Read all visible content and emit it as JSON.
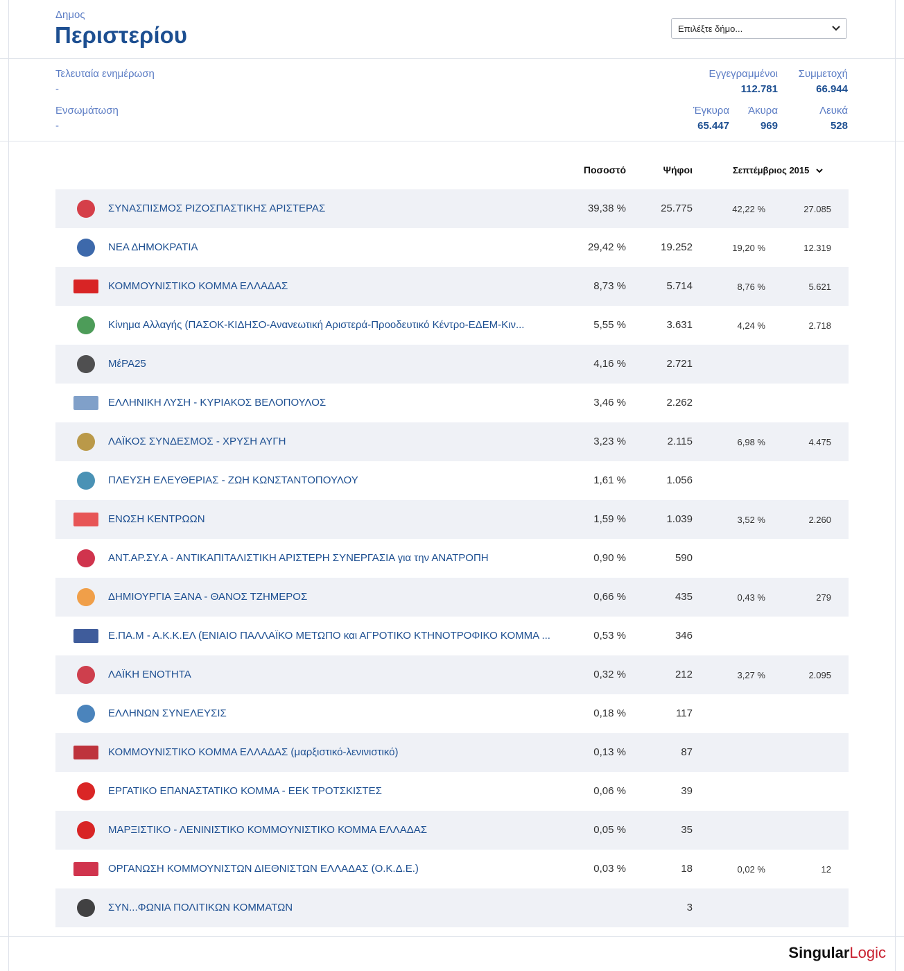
{
  "header": {
    "kicker": "Δημος",
    "title": "Περιστερίου",
    "select": "Επιλέξτε δήμο..."
  },
  "info": {
    "last_update": {
      "label": "Τελευταία ενημέρωση",
      "value": "-"
    },
    "incorporation": {
      "label": "Ενσωμάτωση",
      "value": "-"
    }
  },
  "stats": {
    "registered": {
      "label": "Εγγεγραμμένοι",
      "value": "112.781"
    },
    "turnout": {
      "label": "Συμμετοχή",
      "value": "66.944"
    },
    "valid": {
      "label": "Έγκυρα",
      "value": "65.447"
    },
    "invalid": {
      "label": "Άκυρα",
      "value": "969"
    },
    "blank": {
      "label": "Λευκά",
      "value": "528"
    }
  },
  "table": {
    "headers": {
      "percent": "Ποσοστό",
      "votes": "Ψήφοι",
      "previous": "Σεπτέμβριος 2015"
    },
    "rows": [
      {
        "name": "ΣΥΝΑΣΠΙΣΜΟΣ ΡΙΖΟΣΠΑΣΤΙΚΗΣ ΑΡΙΣΤΕΡΑΣ",
        "percent": "39,38 %",
        "votes": "25.775",
        "prev_percent": "42,22 %",
        "prev_votes": "27.085"
      },
      {
        "name": "ΝΕΑ ΔΗΜΟΚΡΑΤΙΑ",
        "percent": "29,42 %",
        "votes": "19.252",
        "prev_percent": "19,20 %",
        "prev_votes": "12.319"
      },
      {
        "name": "ΚΟΜΜΟΥΝΙΣΤΙΚΟ ΚΟΜΜΑ ΕΛΛΑΔΑΣ",
        "percent": "8,73 %",
        "votes": "5.714",
        "prev_percent": "8,76 %",
        "prev_votes": "5.621"
      },
      {
        "name": "Κίνημα Αλλαγής (ΠΑΣΟΚ-ΚΙΔΗΣΟ-Ανανεωτική Αριστερά-Προοδευτικό Κέντρο-ΕΔΕΜ-Κιν...",
        "percent": "5,55 %",
        "votes": "3.631",
        "prev_percent": "4,24 %",
        "prev_votes": "2.718"
      },
      {
        "name": "ΜέΡΑ25",
        "percent": "4,16 %",
        "votes": "2.721"
      },
      {
        "name": "ΕΛΛΗΝΙΚΗ ΛΥΣΗ - ΚΥΡΙΑΚΟΣ ΒΕΛΟΠΟΥΛΟΣ",
        "percent": "3,46 %",
        "votes": "2.262"
      },
      {
        "name": "ΛΑΪΚΟΣ ΣΥΝΔΕΣΜΟΣ - ΧΡΥΣΗ ΑΥΓΗ",
        "percent": "3,23 %",
        "votes": "2.115",
        "prev_percent": "6,98 %",
        "prev_votes": "4.475"
      },
      {
        "name": "ΠΛΕΥΣΗ ΕΛΕΥΘΕΡΙΑΣ - ΖΩΗ ΚΩΝΣΤΑΝΤΟΠΟΥΛΟΥ",
        "percent": "1,61 %",
        "votes": "1.056"
      },
      {
        "name": "ΕΝΩΣΗ ΚΕΝΤΡΩΩΝ",
        "percent": "1,59 %",
        "votes": "1.039",
        "prev_percent": "3,52 %",
        "prev_votes": "2.260"
      },
      {
        "name": "ΑΝΤ.ΑΡ.ΣΥ.Α - ΑΝΤΙΚΑΠΙΤΑΛΙΣΤΙΚΗ ΑΡΙΣΤΕΡΗ ΣΥΝΕΡΓΑΣΙΑ για την ΑΝΑΤΡΟΠΗ",
        "percent": "0,90 %",
        "votes": "590"
      },
      {
        "name": "ΔΗΜΙΟΥΡΓΙΑ ΞΑΝΑ - ΘΑΝΟΣ ΤΖΗΜΕΡΟΣ",
        "percent": "0,66 %",
        "votes": "435",
        "prev_percent": "0,43 %",
        "prev_votes": "279"
      },
      {
        "name": "Ε.ΠΑ.Μ - Α.Κ.Κ.ΕΛ (ΕΝΙΑΙΟ ΠΑΛΛΑΪΚΟ ΜΕΤΩΠΟ και ΑΓΡΟΤΙΚΟ ΚΤΗΝΟΤΡΟΦΙΚΟ ΚΟΜΜΑ ...",
        "percent": "0,53 %",
        "votes": "346"
      },
      {
        "name": "ΛΑΪΚΗ ΕΝΟΤΗΤΑ",
        "percent": "0,32 %",
        "votes": "212",
        "prev_percent": "3,27 %",
        "prev_votes": "2.095"
      },
      {
        "name": "ΕΛΛΗΝΩΝ ΣΥΝΕΛΕΥΣΙΣ",
        "percent": "0,18 %",
        "votes": "117"
      },
      {
        "name": "ΚΟΜΜΟΥΝΙΣΤΙΚΟ ΚΟΜΜΑ ΕΛΛΑΔΑΣ (μαρξιστικό-λενινιστικό)",
        "percent": "0,13 %",
        "votes": "87"
      },
      {
        "name": "ΕΡΓΑΤΙΚΟ ΕΠΑΝΑΣΤΑΤΙΚΟ ΚΟΜΜΑ - ΕΕΚ ΤΡΟΤΣΚΙΣΤΕΣ",
        "percent": "0,06 %",
        "votes": "39"
      },
      {
        "name": "ΜΑΡΞΙΣΤΙΚΟ - ΛΕΝΙΝΙΣΤΙΚΟ ΚΟΜΜΟΥΝΙΣΤΙΚΟ ΚΟΜΜΑ ΕΛΛΑΔΑΣ",
        "percent": "0,05 %",
        "votes": "35"
      },
      {
        "name": "ΟΡΓΑΝΩΣΗ ΚΟΜΜΟΥΝΙΣΤΩΝ ΔΙΕΘΝΙΣΤΩΝ ΕΛΛΑΔΑΣ (Ο.Κ.Δ.Ε.)",
        "percent": "0,03 %",
        "votes": "18",
        "prev_percent": "0,02 %",
        "prev_votes": "12"
      },
      {
        "name": "ΣΥΝ...ΦΩΝΙΑ ΠΟΛΙΤΙΚΩΝ ΚΟΜΜΑΤΩΝ",
        "votes": "3"
      }
    ]
  },
  "footer": {
    "brand_main": "Singular",
    "brand_accent": "Logic"
  }
}
